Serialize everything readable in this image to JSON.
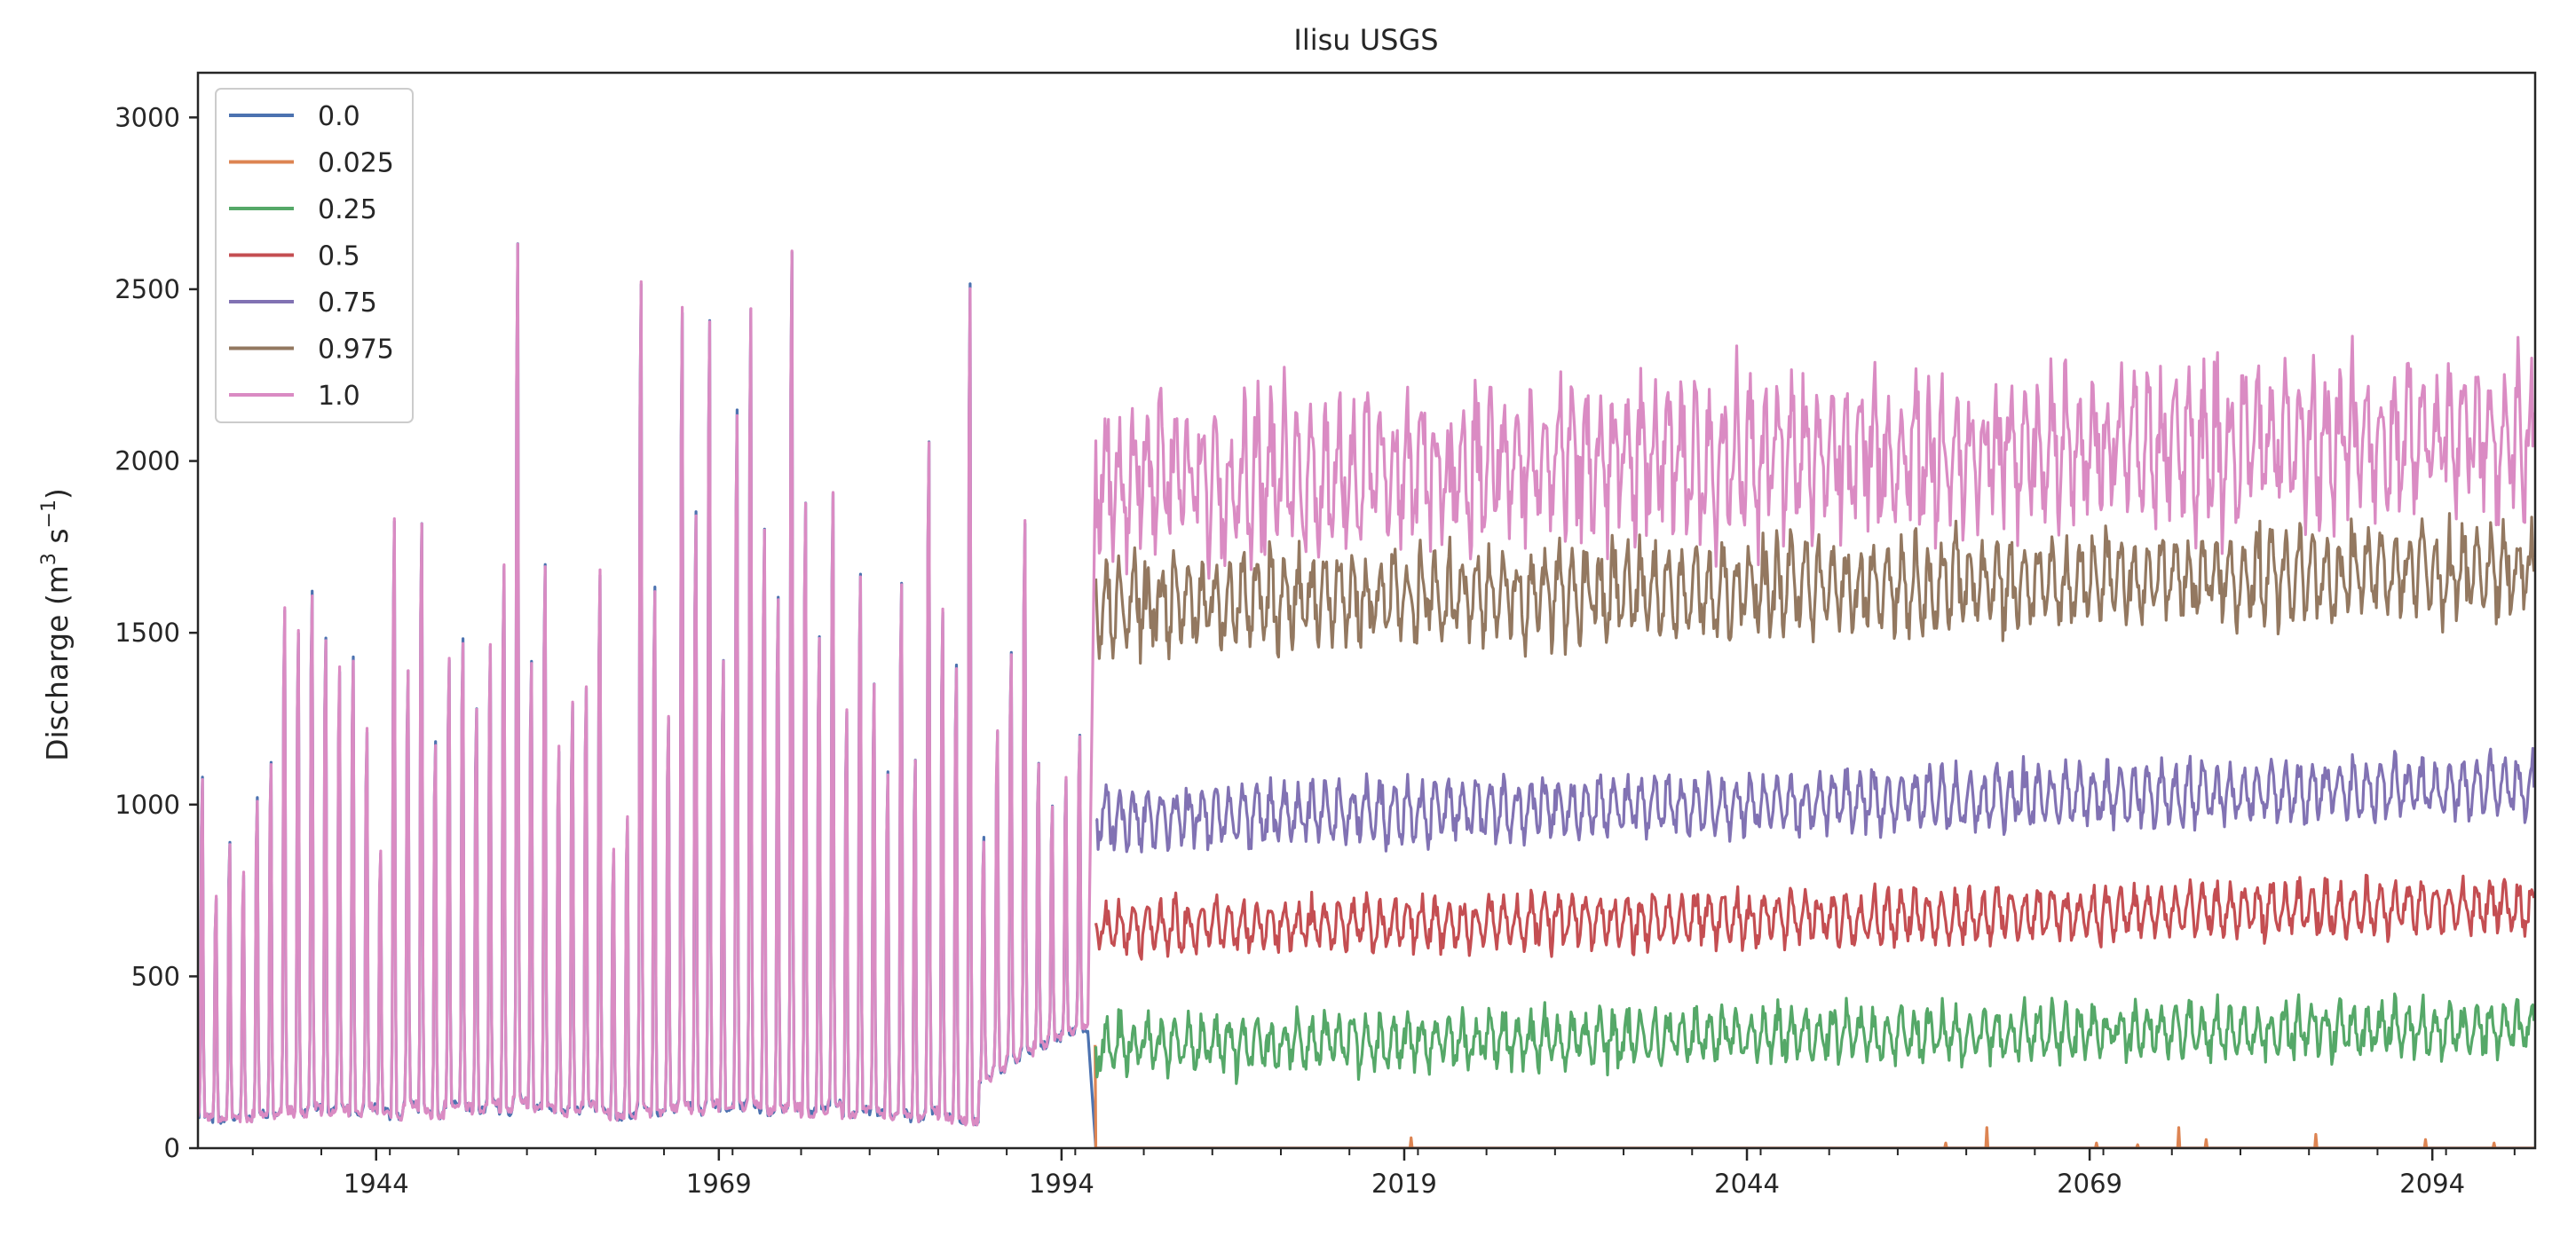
{
  "chart_data": {
    "type": "line",
    "title": "Ilisu USGS",
    "ylabel": "Discharge (m",
    "ylabel_sup1": "3",
    "ylabel_mid": " s",
    "ylabel_sup2": "−1",
    "ylabel_end": ")",
    "xlabel": "",
    "xlim": [
      1931.0,
      2101.5
    ],
    "ylim": [
      0,
      3130
    ],
    "x_ticks": [
      1944,
      1969,
      1994,
      2019,
      2044,
      2069,
      2094
    ],
    "y_ticks": [
      0,
      500,
      1000,
      1500,
      2000,
      2500,
      3000
    ],
    "grid": false,
    "legend_position": "top-left",
    "series": [
      {
        "name": "0.0",
        "color": "#4c72b0",
        "historical_envelope": {
          "annual_peaks": [
            1220,
            830,
            1010,
            900,
            1150,
            1280,
            1780,
            1700,
            1840,
            1690,
            1580,
            1620,
            1370,
            980,
            2090,
            1580,
            2070,
            1340,
            1620,
            1680,
            1450,
            1650,
            1940,
            2990,
            1600,
            1930,
            1320,
            1460,
            1520,
            1910,
            980,
            1080,
            2880,
            1850,
            1420,
            2780,
            2100,
            2750,
            1620,
            2440,
            2780,
            2050,
            1820,
            2970,
            2130,
            1680,
            2160,
            1440,
            1900,
            1520,
            1230,
            1860,
            1290,
            2350,
            1780,
            1600,
            2870,
            1000,
            1370,
            1620,
            2050,
            1240,
            1090,
            1180,
            1320
          ],
          "annual_lows": [
            90,
            80,
            90,
            85,
            100,
            95,
            110,
            100,
            120,
            105,
            115,
            100,
            120,
            110,
            90,
            130,
            110,
            95,
            125,
            120,
            110,
            130,
            105,
            140,
            115,
            120,
            100,
            110,
            125,
            110,
            90,
            95,
            120,
            100,
            115,
            125,
            105,
            130,
            110,
            120,
            130,
            105,
            115,
            120,
            100,
            110,
            130,
            95,
            110,
            105,
            90,
            100,
            85,
            110,
            90,
            80,
            75,
            200,
            230,
            260,
            280,
            300,
            320,
            340,
            350
          ]
        },
        "projection": {
          "mean": 0,
          "amp": 0,
          "noise": 0,
          "trend": 0
        }
      },
      {
        "name": "0.025",
        "color": "#dd8452",
        "historical_envelope": {
          "annual_peaks": [],
          "annual_lows": []
        },
        "projection": {
          "mean": 0,
          "amp": 0,
          "noise": 0,
          "trend": 0,
          "spikes": [
            [
              2019.5,
              30
            ],
            [
              2058.5,
              15
            ],
            [
              2061.5,
              60
            ],
            [
              2069.5,
              15
            ],
            [
              2072.5,
              10
            ],
            [
              2075.5,
              60
            ],
            [
              2077.5,
              25
            ],
            [
              2085.5,
              40
            ],
            [
              2093.5,
              25
            ],
            [
              2098.5,
              15
            ]
          ]
        }
      },
      {
        "name": "0.25",
        "color": "#55a868",
        "historical_envelope": {
          "annual_peaks": [],
          "annual_lows": []
        },
        "projection": {
          "mean": 300,
          "amp": 60,
          "noise": 70,
          "trend": 0.5
        }
      },
      {
        "name": "0.5",
        "color": "#c44e52",
        "historical_envelope": {
          "annual_peaks": [],
          "annual_lows": []
        },
        "projection": {
          "mean": 640,
          "amp": 60,
          "noise": 60,
          "trend": 0.6
        }
      },
      {
        "name": "0.75",
        "color": "#8172b3",
        "historical_envelope": {
          "annual_peaks": [],
          "annual_lows": []
        },
        "projection": {
          "mean": 960,
          "amp": 70,
          "noise": 70,
          "trend": 0.9
        }
      },
      {
        "name": "0.975",
        "color": "#937860",
        "historical_envelope": {
          "annual_peaks": [],
          "annual_lows": []
        },
        "projection": {
          "mean": 1580,
          "amp": 100,
          "noise": 120,
          "trend": 1.0
        }
      },
      {
        "name": "1.0",
        "color": "#da8bc3",
        "historical_envelope": {
          "annual_peaks": [
            1220,
            830,
            1010,
            900,
            1150,
            1280,
            1780,
            1700,
            1840,
            1690,
            1580,
            1620,
            1370,
            980,
            2090,
            1580,
            2070,
            1340,
            1620,
            1680,
            1450,
            1650,
            1940,
            2990,
            1600,
            1930,
            1320,
            1460,
            1520,
            1910,
            980,
            1080,
            2880,
            1850,
            1420,
            2780,
            2100,
            2750,
            1620,
            2440,
            2780,
            2050,
            1820,
            2970,
            2130,
            1680,
            2160,
            1440,
            1900,
            1520,
            1230,
            1860,
            1290,
            2350,
            1780,
            1600,
            2870,
            1000,
            1370,
            1620,
            2050,
            1240,
            1090,
            1180,
            1320
          ],
          "annual_lows": [
            90,
            80,
            90,
            85,
            100,
            95,
            110,
            100,
            120,
            105,
            115,
            100,
            120,
            110,
            90,
            130,
            110,
            95,
            125,
            120,
            110,
            130,
            105,
            140,
            115,
            120,
            100,
            110,
            125,
            110,
            90,
            95,
            120,
            100,
            115,
            125,
            105,
            130,
            110,
            120,
            130,
            105,
            115,
            120,
            100,
            110,
            130,
            95,
            110,
            105,
            90,
            100,
            85,
            110,
            90,
            80,
            75,
            200,
            230,
            260,
            280,
            300,
            320,
            340,
            350
          ]
        },
        "projection": {
          "mean": 1950,
          "amp": 150,
          "noise": 230,
          "trend": 1.2
        }
      }
    ],
    "historical_start": 1931.0,
    "projection_start": 1996.5,
    "projection_end": 2101.5
  }
}
